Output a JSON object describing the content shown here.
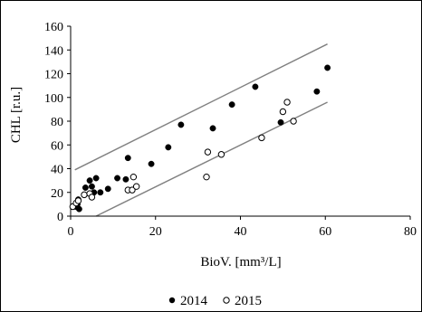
{
  "chart_data": {
    "type": "scatter",
    "title": "",
    "xlabel": "BioV. [mm³/L]",
    "ylabel": "CHL [r.u.]",
    "xlim": [
      0,
      80
    ],
    "ylim": [
      0,
      160
    ],
    "xticks": [
      "0",
      "20",
      "40",
      "60",
      "80"
    ],
    "yticks": [
      "0",
      "20",
      "40",
      "60",
      "80",
      "100",
      "120",
      "140",
      "160"
    ],
    "grid": false,
    "legend_position": "bottom",
    "series": [
      {
        "name": "2014",
        "marker": "filled-circle",
        "color": "#000000",
        "points": [
          [
            1.2,
            8
          ],
          [
            1.6,
            10
          ],
          [
            1.8,
            14
          ],
          [
            2.0,
            6
          ],
          [
            3.5,
            24
          ],
          [
            4.5,
            30
          ],
          [
            5.0,
            25
          ],
          [
            5.5,
            20
          ],
          [
            6.0,
            32
          ],
          [
            7.0,
            20
          ],
          [
            8.8,
            23
          ],
          [
            11.0,
            32
          ],
          [
            13.0,
            31
          ],
          [
            13.5,
            49
          ],
          [
            19.0,
            44
          ],
          [
            23.0,
            58
          ],
          [
            26.0,
            77
          ],
          [
            33.5,
            74
          ],
          [
            38.0,
            94
          ],
          [
            43.5,
            109
          ],
          [
            49.5,
            79
          ],
          [
            58.0,
            105
          ],
          [
            60.5,
            125
          ]
        ]
      },
      {
        "name": "2015",
        "marker": "open-circle",
        "color": "#000000",
        "points": [
          [
            0.5,
            8
          ],
          [
            1.3,
            11
          ],
          [
            1.8,
            13
          ],
          [
            3.2,
            18
          ],
          [
            4.5,
            19
          ],
          [
            5.0,
            16
          ],
          [
            13.5,
            22
          ],
          [
            14.5,
            22
          ],
          [
            14.8,
            33
          ],
          [
            15.5,
            25
          ],
          [
            32.0,
            33
          ],
          [
            32.3,
            54
          ],
          [
            35.5,
            52
          ],
          [
            45.0,
            66
          ],
          [
            50.0,
            88
          ],
          [
            51.0,
            96
          ],
          [
            52.5,
            80
          ]
        ]
      }
    ],
    "reference_lines": [
      {
        "x": [
          1,
          60.5
        ],
        "y": [
          39,
          145
        ],
        "color": "#808080"
      },
      {
        "x": [
          6,
          60.5
        ],
        "y": [
          0,
          96
        ],
        "color": "#808080"
      }
    ]
  }
}
